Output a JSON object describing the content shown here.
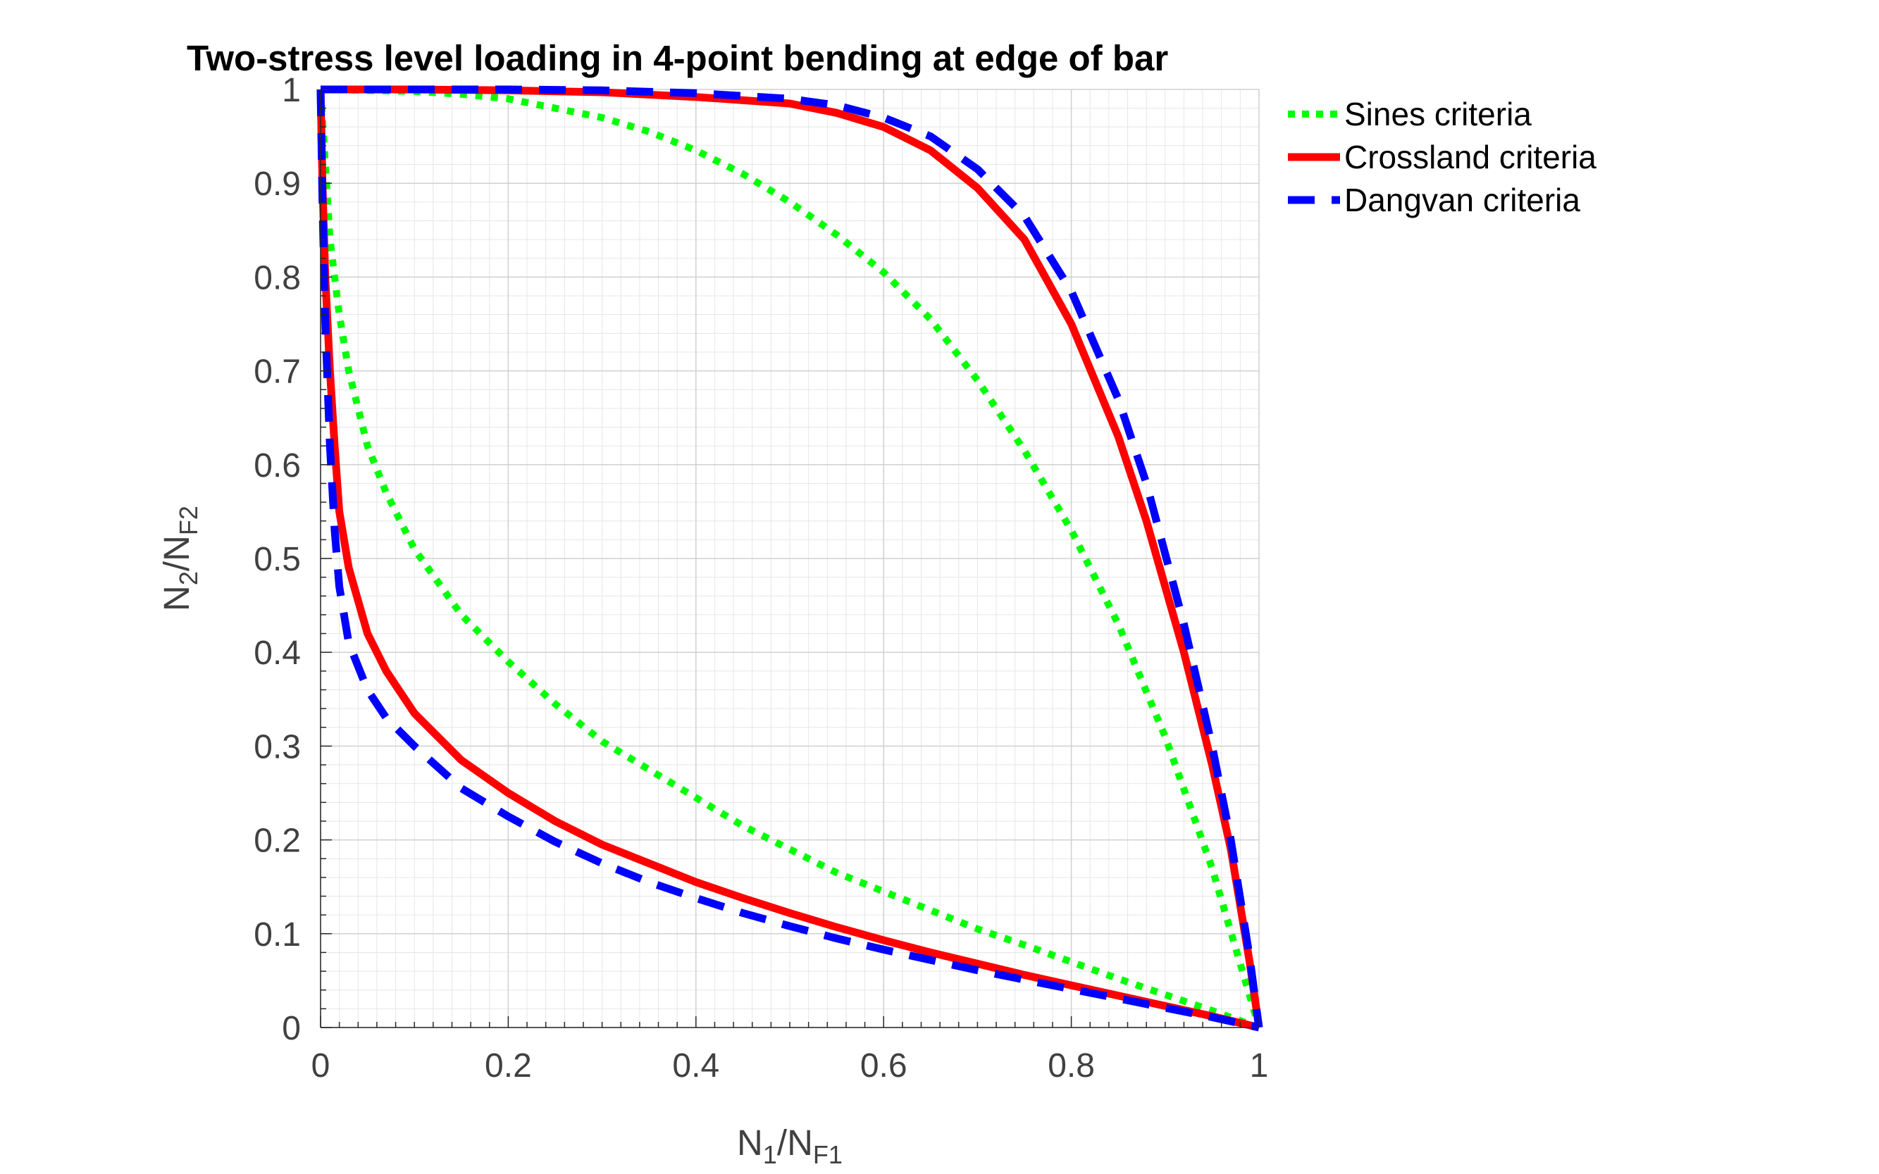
{
  "chart_data": {
    "type": "line",
    "title": "Two-stress level loading in 4-point bending at edge of bar",
    "xlabel": {
      "base": "N",
      "sub1": "1",
      "mid": "/N",
      "sub2": "F1"
    },
    "ylabel": {
      "base": "N",
      "sub1": "2",
      "mid": "/N",
      "sub2": "F2"
    },
    "xlim": [
      0,
      1
    ],
    "ylim": [
      0,
      1
    ],
    "xticks": [
      0,
      0.2,
      0.4,
      0.6,
      0.8,
      1
    ],
    "xtick_labels": [
      "0",
      "0.2",
      "0.4",
      "0.6",
      "0.8",
      "1"
    ],
    "yticks": [
      0,
      0.1,
      0.2,
      0.3,
      0.4,
      0.5,
      0.6,
      0.7,
      0.8,
      0.9,
      1
    ],
    "ytick_labels": [
      "0",
      "0.1",
      "0.2",
      "0.3",
      "0.4",
      "0.5",
      "0.6",
      "0.7",
      "0.8",
      "0.9",
      "1"
    ],
    "grid": true,
    "minor_grid": true,
    "legend_position": "outside-top-right",
    "series": [
      {
        "name": "Sines criteria",
        "color": "#00ff00",
        "style": "dotted",
        "upper": {
          "x": [
            0.0,
            0.05,
            0.1,
            0.15,
            0.2,
            0.25,
            0.3,
            0.35,
            0.4,
            0.45,
            0.5,
            0.55,
            0.6,
            0.65,
            0.7,
            0.75,
            0.8,
            0.85,
            0.9,
            0.95,
            1.0
          ],
          "y": [
            1.0,
            0.999,
            0.998,
            0.995,
            0.99,
            0.98,
            0.97,
            0.955,
            0.935,
            0.91,
            0.88,
            0.845,
            0.805,
            0.755,
            0.69,
            0.615,
            0.53,
            0.43,
            0.31,
            0.17,
            0.0
          ]
        },
        "lower": {
          "x": [
            0.0,
            0.005,
            0.01,
            0.02,
            0.03,
            0.05,
            0.07,
            0.1,
            0.15,
            0.2,
            0.25,
            0.3,
            0.35,
            0.4,
            0.45,
            0.5,
            0.55,
            0.6,
            0.65,
            0.7,
            0.75,
            0.8,
            0.85,
            0.9,
            0.95,
            1.0
          ],
          "y": [
            1.0,
            0.92,
            0.84,
            0.76,
            0.7,
            0.62,
            0.57,
            0.51,
            0.44,
            0.39,
            0.345,
            0.305,
            0.275,
            0.245,
            0.215,
            0.19,
            0.165,
            0.145,
            0.125,
            0.105,
            0.088,
            0.07,
            0.052,
            0.035,
            0.018,
            0.0
          ]
        }
      },
      {
        "name": "Crossland criteria",
        "color": "#ff0000",
        "style": "solid",
        "upper": {
          "x": [
            0.0,
            0.05,
            0.1,
            0.2,
            0.3,
            0.4,
            0.5,
            0.55,
            0.6,
            0.65,
            0.7,
            0.75,
            0.8,
            0.85,
            0.88,
            0.9,
            0.92,
            0.95,
            0.97,
            0.99,
            1.0
          ],
          "y": [
            1.0,
            1.0,
            1.0,
            0.999,
            0.997,
            0.992,
            0.985,
            0.975,
            0.96,
            0.935,
            0.895,
            0.84,
            0.75,
            0.63,
            0.54,
            0.47,
            0.4,
            0.28,
            0.19,
            0.07,
            0.0
          ]
        },
        "lower": {
          "x": [
            0.0,
            0.002,
            0.005,
            0.01,
            0.015,
            0.02,
            0.03,
            0.05,
            0.07,
            0.1,
            0.15,
            0.2,
            0.25,
            0.3,
            0.35,
            0.4,
            0.45,
            0.5,
            0.55,
            0.6,
            0.65,
            0.7,
            0.75,
            0.8,
            0.85,
            0.9,
            0.95,
            1.0
          ],
          "y": [
            1.0,
            0.9,
            0.8,
            0.7,
            0.62,
            0.55,
            0.49,
            0.42,
            0.38,
            0.335,
            0.285,
            0.25,
            0.22,
            0.195,
            0.175,
            0.155,
            0.138,
            0.122,
            0.107,
            0.093,
            0.08,
            0.068,
            0.056,
            0.045,
            0.034,
            0.023,
            0.012,
            0.0
          ]
        }
      },
      {
        "name": "Dangvan criteria",
        "color": "#0000ff",
        "style": "dashed",
        "upper": {
          "x": [
            0.0,
            0.05,
            0.1,
            0.2,
            0.3,
            0.4,
            0.5,
            0.55,
            0.6,
            0.65,
            0.7,
            0.75,
            0.8,
            0.85,
            0.88,
            0.9,
            0.92,
            0.95,
            0.97,
            0.99,
            1.0
          ],
          "y": [
            1.0,
            1.0,
            1.0,
            1.0,
            0.999,
            0.996,
            0.99,
            0.983,
            0.97,
            0.95,
            0.915,
            0.865,
            0.785,
            0.67,
            0.58,
            0.505,
            0.43,
            0.3,
            0.2,
            0.075,
            0.0
          ]
        },
        "lower": {
          "x": [
            0.0,
            0.002,
            0.005,
            0.01,
            0.015,
            0.02,
            0.03,
            0.05,
            0.07,
            0.1,
            0.15,
            0.2,
            0.25,
            0.3,
            0.35,
            0.4,
            0.45,
            0.5,
            0.55,
            0.6,
            0.65,
            0.7,
            0.75,
            0.8,
            0.85,
            0.9,
            0.95,
            1.0
          ],
          "y": [
            1.0,
            0.88,
            0.75,
            0.62,
            0.53,
            0.47,
            0.41,
            0.36,
            0.33,
            0.3,
            0.255,
            0.225,
            0.198,
            0.175,
            0.155,
            0.138,
            0.122,
            0.108,
            0.095,
            0.083,
            0.072,
            0.061,
            0.051,
            0.041,
            0.031,
            0.021,
            0.011,
            0.0
          ]
        }
      }
    ]
  }
}
